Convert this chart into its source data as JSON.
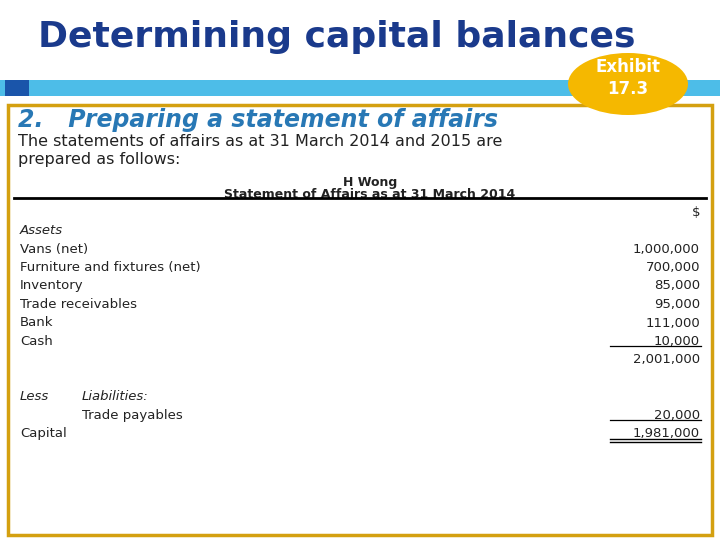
{
  "title": "Determining capital balances",
  "exhibit_label": "Exhibit\n17.3",
  "section_heading": "2.   Preparing a statement of affairs",
  "intro_line1": "The statements of affairs as at 31 March 2014 and 2015 are",
  "intro_line2": "prepared as follows:",
  "table_title1": "H Wong",
  "table_title2": "Statement of Affairs as at 31 March 2014",
  "col_header": "$",
  "rows": [
    {
      "label": "Assets",
      "value": "",
      "italic": true,
      "indent": false
    },
    {
      "label": "Vans (net)",
      "value": "1,000,000",
      "italic": false,
      "indent": false
    },
    {
      "label": "Furniture and fixtures (net)",
      "value": "700,000",
      "italic": false,
      "indent": false
    },
    {
      "label": "Inventory",
      "value": "85,000",
      "italic": false,
      "indent": false
    },
    {
      "label": "Trade receivables",
      "value": "95,000",
      "italic": false,
      "indent": false
    },
    {
      "label": "Bank",
      "value": "111,000",
      "italic": false,
      "indent": false
    },
    {
      "label": "Cash",
      "value": "10,000",
      "italic": false,
      "indent": false,
      "underline_value": true
    },
    {
      "label": "",
      "value": "2,001,000",
      "italic": false,
      "indent": false
    },
    {
      "label": "",
      "value": "",
      "italic": false,
      "indent": false
    },
    {
      "label": "Less",
      "value": "",
      "italic": true,
      "indent": false,
      "liabilities": "Liabilities:"
    },
    {
      "label": "Trade payables",
      "value": "20,000",
      "italic": false,
      "indent": true,
      "underline_value": true
    },
    {
      "label": "Capital",
      "value": "1,981,000",
      "italic": false,
      "indent": false,
      "double_underline": true
    }
  ],
  "bg_color": "#ffffff",
  "title_color": "#1a3a8c",
  "blue_bar_color": "#4dbde8",
  "dark_blue_rect_color": "#1a55aa",
  "exhibit_bg": "#f5b800",
  "exhibit_text_color": "#ffffff",
  "section_color": "#2878b5",
  "border_color": "#d4a010",
  "table_line_color": "#000000",
  "body_text_color": "#222222",
  "font_size_title": 26,
  "font_size_section": 17,
  "font_size_body": 11.5,
  "font_size_table": 9.5,
  "font_size_exhibit": 12
}
